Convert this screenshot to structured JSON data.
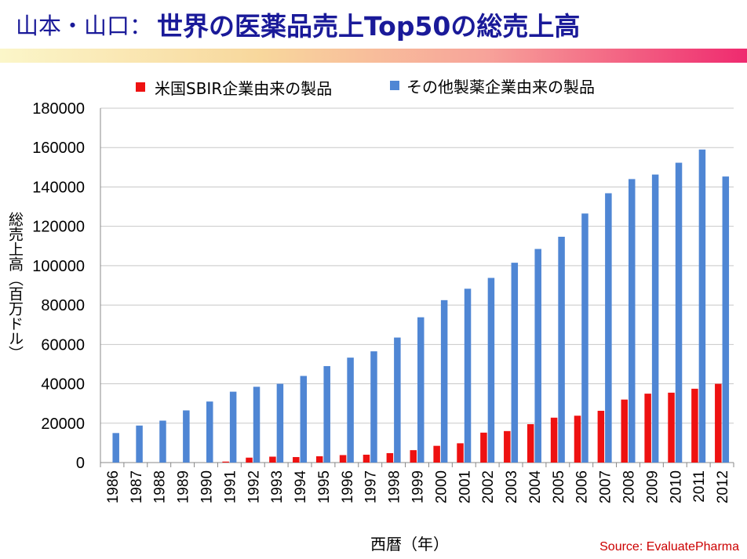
{
  "slide": {
    "title_prefix": "山本・山口：",
    "title_main": "世界の医薬品売上Top50の総売上高",
    "source": "Source:  EvaluatePharma"
  },
  "colors": {
    "sbir": "#ee1111",
    "other": "#4f86d4",
    "title": "#1a1a99",
    "grid": "#c8c8c8"
  },
  "chart_data": {
    "type": "bar",
    "title": "",
    "xlabel": "西暦（年）",
    "ylabel": "総売上高（百万ドル）",
    "ylim": [
      0,
      180000
    ],
    "yticks": [
      0,
      20000,
      40000,
      60000,
      80000,
      100000,
      120000,
      140000,
      160000,
      180000
    ],
    "grid": true,
    "legend_position": "top",
    "categories": [
      "1986",
      "1987",
      "1988",
      "1989",
      "1990",
      "1991",
      "1992",
      "1993",
      "1994",
      "1995",
      "1996",
      "1997",
      "1998",
      "1999",
      "2000",
      "2001",
      "2002",
      "2003",
      "2004",
      "2005",
      "2006",
      "2007",
      "2008",
      "2009",
      "2010",
      "2011",
      "2012"
    ],
    "series": [
      {
        "name": "米国SBIR企業由来の製品",
        "values": [
          0,
          0,
          0,
          0,
          0,
          500,
          2500,
          3000,
          2800,
          3200,
          3800,
          4000,
          4800,
          6300,
          8500,
          9800,
          15200,
          16000,
          19500,
          22800,
          23800,
          26300,
          32000,
          35000,
          35500,
          37500,
          40000
        ]
      },
      {
        "name": "その他製薬企業由来の製品",
        "values": [
          15000,
          18800,
          21300,
          26500,
          31000,
          36000,
          38500,
          40000,
          44000,
          49000,
          53300,
          56500,
          63500,
          73800,
          82500,
          88300,
          93800,
          101500,
          108500,
          114700,
          126500,
          136800,
          144000,
          146300,
          152300,
          159000,
          145300
        ]
      }
    ]
  }
}
